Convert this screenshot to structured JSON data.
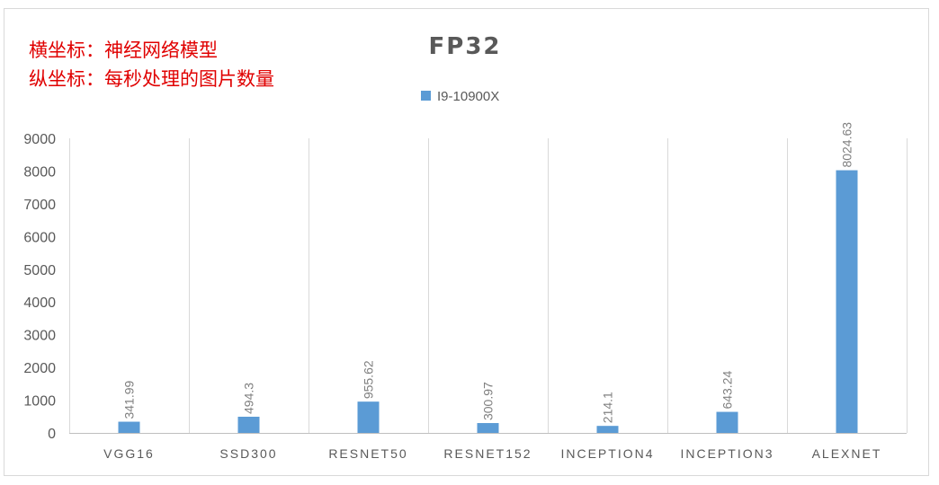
{
  "annotations": {
    "line1": "横坐标：神经网络模型",
    "line2": "纵坐标：每秒处理的图片数量"
  },
  "colors": {
    "bar": "#5b9bd5",
    "annotation": "#e00000"
  },
  "chart_data": {
    "type": "bar",
    "title": "FP32",
    "xlabel": "",
    "ylabel": "",
    "categories": [
      "VGG16",
      "SSD300",
      "RESNET50",
      "RESNET152",
      "INCEPTION4",
      "INCEPTION3",
      "ALEXNET"
    ],
    "series": [
      {
        "name": "I9-10900X",
        "values": [
          341.99,
          494.3,
          955.62,
          300.97,
          214.1,
          643.24,
          8024.63
        ]
      }
    ],
    "ylim": [
      0,
      9000
    ],
    "yticks": [
      0,
      1000,
      2000,
      3000,
      4000,
      5000,
      6000,
      7000,
      8000,
      9000
    ],
    "grid": "vertical separators between categories",
    "legend_position": "top-center",
    "data_labels": true
  }
}
